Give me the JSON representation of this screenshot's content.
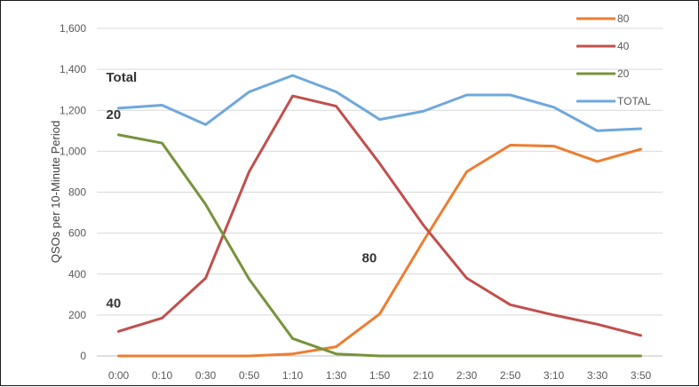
{
  "chart_data": {
    "type": "line",
    "title": "",
    "xlabel": "",
    "ylabel": "QSOs per 10-Minute Period",
    "ylim": [
      0,
      1600
    ],
    "yticks": [
      "0",
      "200",
      "400",
      "600",
      "800",
      "1,000",
      "1,200",
      "1,400",
      "1,600"
    ],
    "categories": [
      "0:00",
      "0:10",
      "0:30",
      "0:50",
      "1:10",
      "1:30",
      "1:50",
      "2:10",
      "2:30",
      "2:50",
      "3:10",
      "3:30",
      "3:50"
    ],
    "grid": "horizontal",
    "legend_position": "top-right",
    "series": [
      {
        "name": "80",
        "color": "#ED7D31",
        "values": [
          0,
          0,
          0,
          0,
          10,
          45,
          205,
          560,
          900,
          1030,
          1025,
          950,
          1010
        ]
      },
      {
        "name": "40",
        "color": "#C0504D",
        "values": [
          120,
          185,
          380,
          900,
          1270,
          1220,
          940,
          640,
          380,
          250,
          200,
          155,
          100
        ]
      },
      {
        "name": "20",
        "color": "#77933C",
        "values": [
          1080,
          1040,
          740,
          375,
          85,
          10,
          0,
          0,
          0,
          0,
          0,
          0,
          0
        ]
      },
      {
        "name": "TOTAL",
        "color": "#6FA8DC",
        "values": [
          1210,
          1225,
          1130,
          1290,
          1370,
          1290,
          1155,
          1195,
          1275,
          1275,
          1215,
          1100,
          1110
        ]
      }
    ],
    "annotations": [
      {
        "text": "Total",
        "series": "TOTAL"
      },
      {
        "text": "20",
        "series": "20"
      },
      {
        "text": "40",
        "series": "40"
      },
      {
        "text": "80",
        "series": "80"
      }
    ]
  }
}
